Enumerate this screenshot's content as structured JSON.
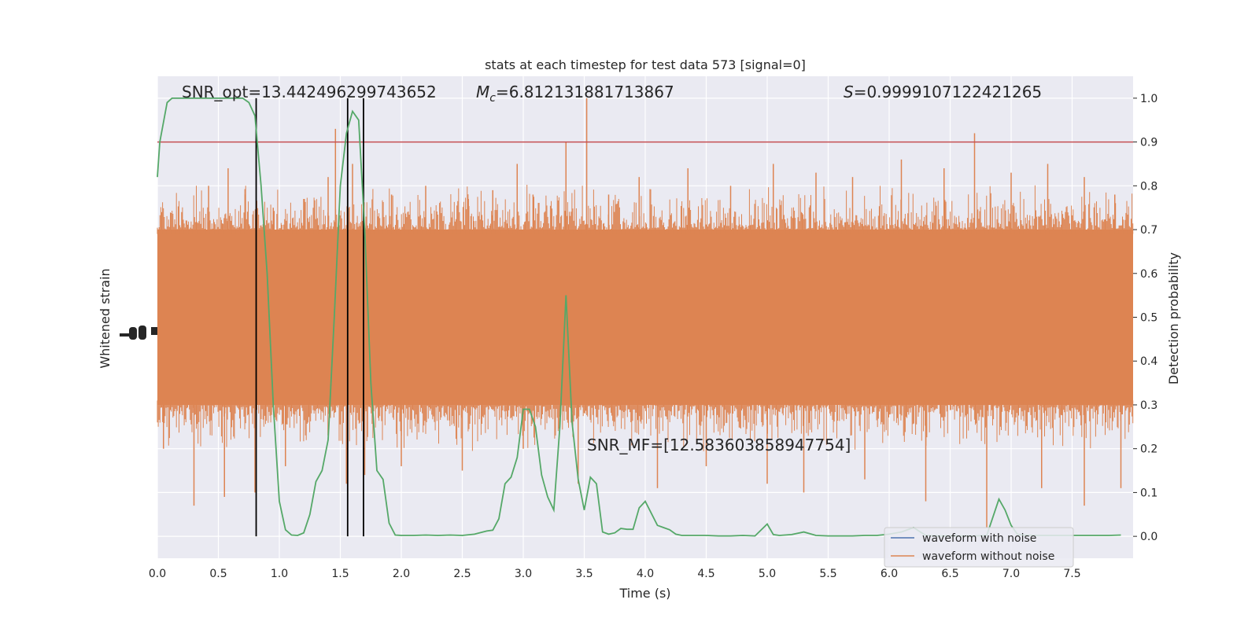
{
  "chart_data": {
    "type": "line",
    "title": "stats at each timestep for test data 573 [signal=0]",
    "xlabel": "Time (s)",
    "ylabel_left": "Whitened strain",
    "ylabel_right": "Detection probability",
    "xlim": [
      0.0,
      8.0
    ],
    "ylim_right": [
      -0.05,
      1.05
    ],
    "x_ticks": [
      "0.0",
      "0.5",
      "1.0",
      "1.5",
      "2.0",
      "2.5",
      "3.0",
      "3.5",
      "4.0",
      "4.5",
      "5.0",
      "5.5",
      "6.0",
      "6.5",
      "7.0",
      "7.5"
    ],
    "x_tick_values": [
      0.0,
      0.5,
      1.0,
      1.5,
      2.0,
      2.5,
      3.0,
      3.5,
      4.0,
      4.5,
      5.0,
      5.5,
      6.0,
      6.5,
      7.0,
      7.5
    ],
    "y_ticks_right": [
      "0.0",
      "0.1",
      "0.2",
      "0.3",
      "0.4",
      "0.5",
      "0.6",
      "0.7",
      "0.8",
      "0.9",
      "1.0"
    ],
    "y_tick_values_right": [
      0.0,
      0.1,
      0.2,
      0.3,
      0.4,
      0.5,
      0.6,
      0.7,
      0.8,
      0.9,
      1.0
    ],
    "threshold": 0.9,
    "threshold_color": "#c44e52",
    "vertical_lines": [
      0.81,
      1.56,
      1.69
    ],
    "annotations": {
      "snr_opt": "SNR_opt=13.442496299743652",
      "mc_symbol": "M",
      "mc_sub": "c",
      "mc_value": "=6.812131881713867",
      "s_symbol": "S",
      "s_value": "=0.9999107122421265",
      "snr_mf": "SNR_MF=[12.583603858947754]"
    },
    "strain_band": {
      "color": "#dd8452",
      "core_range": [
        0.3,
        0.7
      ],
      "spikes_up": [
        [
          0.2,
          0.74
        ],
        [
          0.42,
          0.8
        ],
        [
          0.58,
          0.84
        ],
        [
          0.72,
          0.78
        ],
        [
          0.95,
          0.75
        ],
        [
          1.2,
          0.77
        ],
        [
          1.4,
          0.82
        ],
        [
          1.46,
          0.93
        ],
        [
          1.6,
          0.85
        ],
        [
          1.92,
          0.78
        ],
        [
          2.2,
          0.8
        ],
        [
          2.55,
          0.77
        ],
        [
          2.75,
          0.79
        ],
        [
          2.95,
          0.85
        ],
        [
          3.08,
          0.78
        ],
        [
          3.35,
          0.9
        ],
        [
          3.52,
          1.0
        ],
        [
          3.7,
          0.78
        ],
        [
          3.95,
          0.82
        ],
        [
          4.35,
          0.84
        ],
        [
          4.7,
          0.8
        ],
        [
          5.05,
          0.85
        ],
        [
          5.4,
          0.83
        ],
        [
          5.7,
          0.82
        ],
        [
          6.1,
          0.86
        ],
        [
          6.45,
          0.84
        ],
        [
          6.7,
          0.92
        ],
        [
          7.0,
          0.83
        ],
        [
          7.3,
          0.85
        ],
        [
          7.6,
          0.82
        ],
        [
          7.85,
          0.78
        ]
      ],
      "spikes_down": [
        [
          0.05,
          0.2
        ],
        [
          0.3,
          0.07
        ],
        [
          0.55,
          0.09
        ],
        [
          0.8,
          0.1
        ],
        [
          1.05,
          0.16
        ],
        [
          1.55,
          0.12
        ],
        [
          1.7,
          0.14
        ],
        [
          2.0,
          0.16
        ],
        [
          2.5,
          0.15
        ],
        [
          3.0,
          0.2
        ],
        [
          3.45,
          0.12
        ],
        [
          4.1,
          0.11
        ],
        [
          4.5,
          0.16
        ],
        [
          5.0,
          0.12
        ],
        [
          5.3,
          0.1
        ],
        [
          5.8,
          0.13
        ],
        [
          6.3,
          0.08
        ],
        [
          6.8,
          0.02
        ],
        [
          7.25,
          0.11
        ],
        [
          7.6,
          0.07
        ],
        [
          7.9,
          0.11
        ]
      ]
    },
    "series": [
      {
        "name": "waveform with noise",
        "color": "#4c72b0",
        "x": [],
        "y": []
      },
      {
        "name": "waveform without noise",
        "color": "#dd8452",
        "x": [],
        "y": []
      },
      {
        "color": "#55a868",
        "x": [
          0.0,
          0.02,
          0.08,
          0.12,
          0.2,
          0.3,
          0.4,
          0.5,
          0.6,
          0.7,
          0.75,
          0.8,
          0.85,
          0.9,
          0.95,
          1.0,
          1.05,
          1.1,
          1.15,
          1.2,
          1.25,
          1.3,
          1.35,
          1.4,
          1.45,
          1.5,
          1.55,
          1.6,
          1.65,
          1.7,
          1.75,
          1.8,
          1.85,
          1.9,
          1.95,
          2.0,
          2.1,
          2.2,
          2.3,
          2.4,
          2.5,
          2.6,
          2.7,
          2.75,
          2.8,
          2.85,
          2.9,
          2.95,
          3.0,
          3.05,
          3.1,
          3.15,
          3.2,
          3.25,
          3.3,
          3.35,
          3.4,
          3.45,
          3.5,
          3.55,
          3.6,
          3.65,
          3.7,
          3.75,
          3.8,
          3.85,
          3.9,
          3.95,
          4.0,
          4.1,
          4.15,
          4.2,
          4.25,
          4.3,
          4.4,
          4.5,
          4.6,
          4.7,
          4.8,
          4.9,
          5.0,
          5.05,
          5.1,
          5.2,
          5.3,
          5.4,
          5.5,
          5.6,
          5.7,
          5.8,
          5.9,
          6.0,
          6.1,
          6.2,
          6.3,
          6.4,
          6.5,
          6.6,
          6.7,
          6.8,
          6.9,
          6.95,
          7.0,
          7.05,
          7.1,
          7.2,
          7.3,
          7.4,
          7.5,
          7.6,
          7.7,
          7.8,
          7.9
        ],
        "y": [
          0.82,
          0.9,
          0.99,
          1.0,
          1.0,
          1.0,
          1.0,
          1.0,
          1.0,
          1.0,
          0.99,
          0.96,
          0.8,
          0.6,
          0.3,
          0.08,
          0.015,
          0.003,
          0.002,
          0.008,
          0.05,
          0.125,
          0.15,
          0.22,
          0.5,
          0.8,
          0.92,
          0.97,
          0.95,
          0.7,
          0.35,
          0.15,
          0.13,
          0.03,
          0.003,
          0.002,
          0.002,
          0.003,
          0.002,
          0.003,
          0.002,
          0.005,
          0.012,
          0.014,
          0.04,
          0.12,
          0.135,
          0.18,
          0.29,
          0.29,
          0.25,
          0.14,
          0.09,
          0.06,
          0.25,
          0.55,
          0.26,
          0.13,
          0.06,
          0.135,
          0.12,
          0.01,
          0.005,
          0.008,
          0.018,
          0.016,
          0.016,
          0.065,
          0.08,
          0.025,
          0.02,
          0.015,
          0.005,
          0.002,
          0.002,
          0.002,
          0.001,
          0.001,
          0.002,
          0.001,
          0.028,
          0.004,
          0.002,
          0.004,
          0.01,
          0.002,
          0.001,
          0.001,
          0.001,
          0.002,
          0.002,
          0.005,
          0.01,
          0.02,
          0.002,
          0.001,
          0.001,
          0.001,
          0.001,
          0.002,
          0.085,
          0.06,
          0.025,
          0.005,
          0.003,
          0.002,
          0.002,
          0.002,
          0.002,
          0.002,
          0.002,
          0.002,
          0.003
        ]
      }
    ],
    "legend": {
      "placement": "lower-right",
      "entries": [
        "waveform with noise",
        "waveform without noise"
      ]
    },
    "grid": true,
    "background": "#eaeaf2"
  }
}
